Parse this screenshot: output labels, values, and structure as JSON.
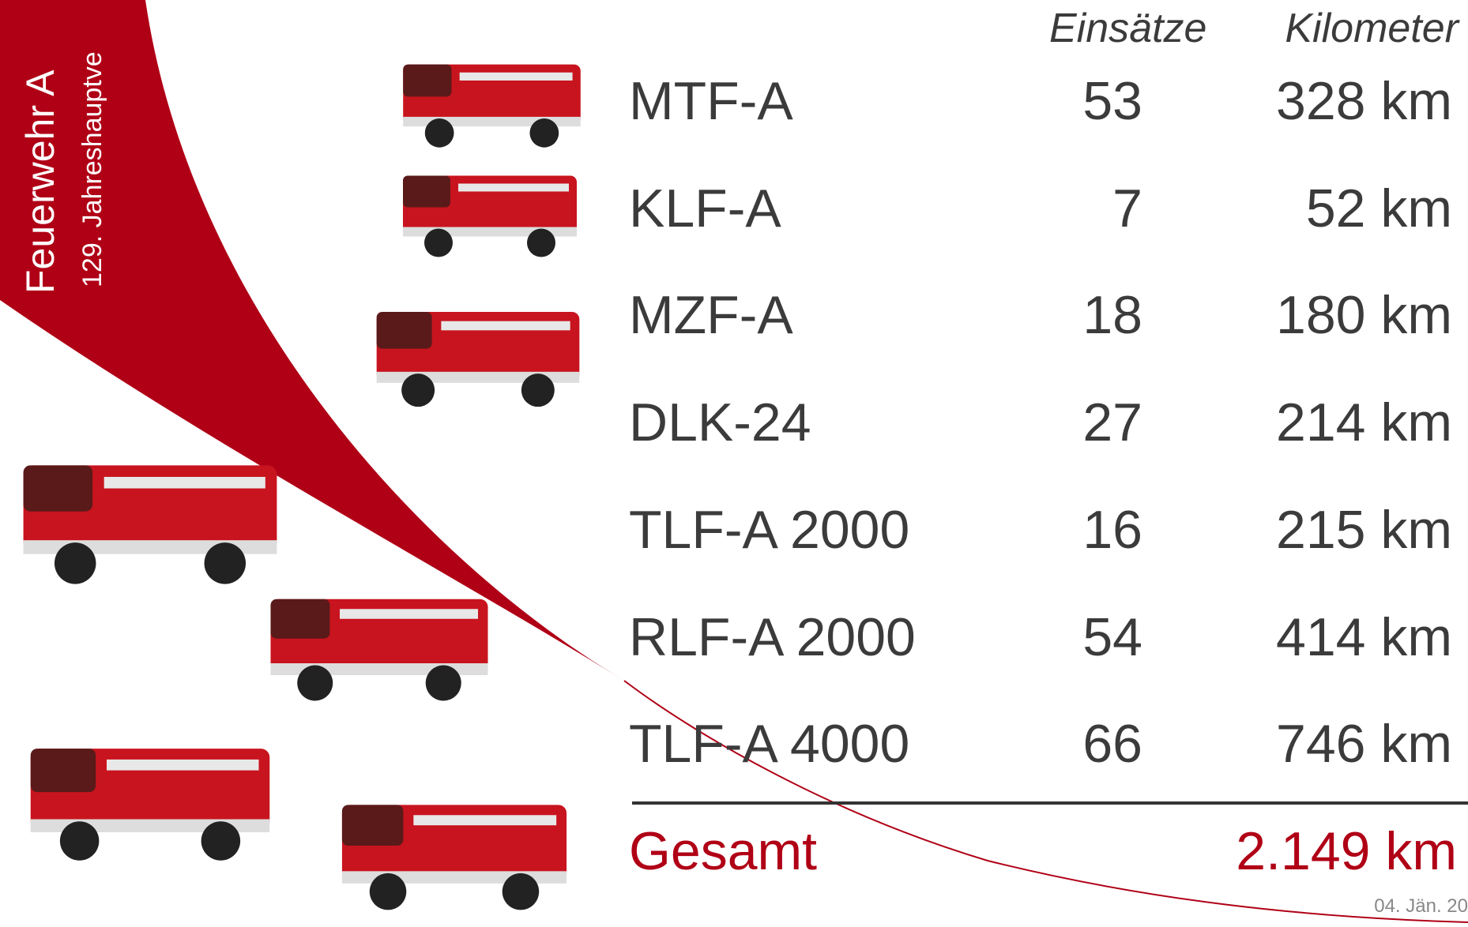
{
  "header": {
    "title": "Feuerwehr A",
    "subtitle": "129. Jahreshauptve"
  },
  "table": {
    "columns": [
      "Einsätze",
      "Kilometer"
    ],
    "rows": [
      [
        "MTF-A",
        53,
        "328 km"
      ],
      [
        "KLF-A",
        7,
        "52 km"
      ],
      [
        "MZF-A",
        18,
        "180 km"
      ],
      [
        "DLK-24",
        27,
        "214 km"
      ],
      [
        "TLF-A 2000",
        16,
        "215 km"
      ],
      [
        "RLF-A 2000",
        54,
        "414 km"
      ],
      [
        "TLF-A 4000",
        66,
        "746 km"
      ]
    ],
    "total": {
      "label": "Gesamt",
      "value": "2.149 km"
    }
  },
  "footer": {
    "date": "04. Jän. 20"
  }
}
